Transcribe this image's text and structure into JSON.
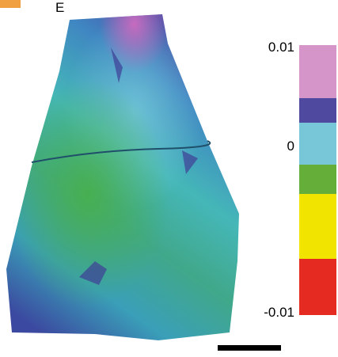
{
  "panel_label": "E",
  "colorbar": {
    "ticks": [
      0.01,
      0,
      -0.01
    ],
    "colors": [
      "#d595c9",
      "#4f4aa0",
      "#77c7d8",
      "#66ae3a",
      "#f1e500",
      "#e52a22"
    ]
  }
}
